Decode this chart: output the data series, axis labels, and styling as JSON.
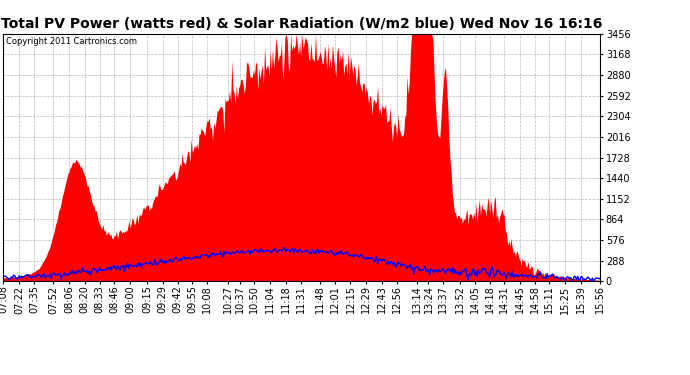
{
  "title": "Total PV Power (watts red) & Solar Radiation (W/m2 blue) Wed Nov 16 16:16",
  "copyright_text": "Copyright 2011 Cartronics.com",
  "yticks": [
    0.0,
    288.0,
    576.1,
    864.1,
    1152.2,
    1440.2,
    1728.2,
    2016.3,
    2304.3,
    2592.4,
    2880.4,
    3168.5,
    3456.5
  ],
  "ylim": [
    0,
    3456.5
  ],
  "x_labels": [
    "07:08",
    "07:22",
    "07:35",
    "07:52",
    "08:06",
    "08:20",
    "08:33",
    "08:46",
    "09:00",
    "09:15",
    "09:29",
    "09:42",
    "09:55",
    "10:08",
    "10:27",
    "10:37",
    "10:50",
    "11:04",
    "11:18",
    "11:31",
    "11:48",
    "12:01",
    "12:15",
    "12:29",
    "12:43",
    "12:56",
    "13:14",
    "13:24",
    "13:37",
    "13:52",
    "14:05",
    "14:18",
    "14:31",
    "14:45",
    "14:58",
    "15:11",
    "15:25",
    "15:39",
    "15:56"
  ],
  "background_color": "#ffffff",
  "plot_bg_color": "#ffffff",
  "grid_color": "#999999",
  "pv_color": "red",
  "solar_color": "blue",
  "title_fontsize": 10,
  "tick_fontsize": 7
}
